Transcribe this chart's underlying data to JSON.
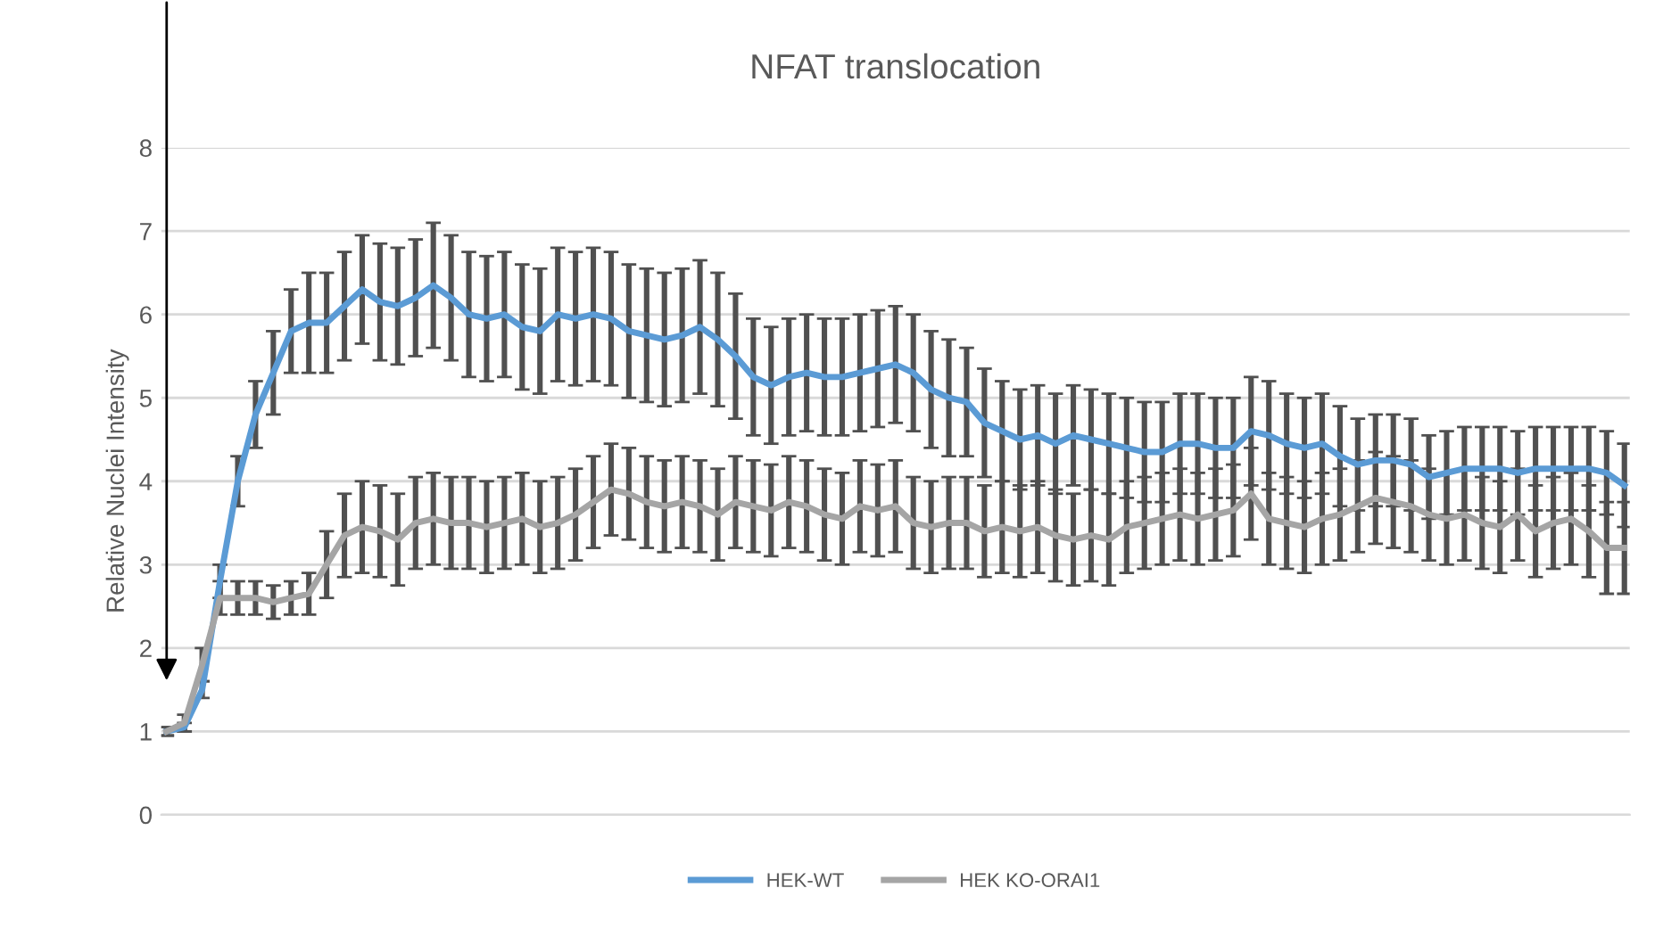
{
  "chart_data": {
    "type": "line",
    "title": "NFAT translocation",
    "ylabel": "Relative Nuclei Intensity",
    "categories": [
      null,
      null,
      null,
      null,
      null,
      null,
      null,
      null,
      null,
      null,
      null,
      null,
      null,
      null,
      null,
      null,
      null,
      null,
      null,
      null,
      null,
      null,
      null,
      null,
      null,
      null,
      null,
      null,
      null,
      null,
      null,
      null,
      null,
      null,
      null,
      null,
      null,
      null,
      null,
      null,
      null,
      null,
      null,
      null,
      null,
      null,
      null,
      null,
      null,
      null,
      null,
      null,
      null,
      null,
      null,
      null,
      null,
      null,
      null,
      null,
      null,
      null,
      null,
      null,
      null,
      null,
      null,
      null,
      null,
      null,
      null,
      null,
      null,
      null,
      null,
      null,
      null,
      null,
      null,
      null,
      null,
      null,
      null
    ],
    "ylim": [
      0,
      8
    ],
    "yticks": [
      0,
      1,
      2,
      3,
      4,
      5,
      6,
      7,
      8
    ],
    "grid": "y",
    "legend": "bottom",
    "marker": "none",
    "line_style": "solid",
    "series": [
      {
        "name": "HEK-WT",
        "color": "#5b9bd5",
        "values": [
          1.0,
          1.05,
          1.5,
          2.8,
          4.0,
          4.8,
          5.3,
          5.8,
          5.9,
          5.9,
          6.1,
          6.3,
          6.15,
          6.1,
          6.2,
          6.35,
          6.2,
          6.0,
          5.95,
          6.0,
          5.85,
          5.8,
          6.0,
          5.95,
          6.0,
          5.95,
          5.8,
          5.75,
          5.7,
          5.75,
          5.85,
          5.7,
          5.5,
          5.25,
          5.15,
          5.25,
          5.3,
          5.25,
          5.25,
          5.3,
          5.35,
          5.4,
          5.3,
          5.1,
          5.0,
          4.95,
          4.7,
          4.6,
          4.5,
          4.55,
          4.45,
          4.55,
          4.5,
          4.45,
          4.4,
          4.35,
          4.35,
          4.45,
          4.45,
          4.4,
          4.4,
          4.6,
          4.55,
          4.45,
          4.4,
          4.45,
          4.3,
          4.2,
          4.25,
          4.25,
          4.2,
          4.05,
          4.1,
          4.15,
          4.15,
          4.15,
          4.1,
          4.15,
          4.15,
          4.15,
          4.15,
          4.1,
          3.95
        ],
        "errors": [
          0.05,
          0.05,
          0.1,
          0.2,
          0.3,
          0.4,
          0.5,
          0.5,
          0.6,
          0.6,
          0.65,
          0.65,
          0.7,
          0.7,
          0.7,
          0.75,
          0.75,
          0.75,
          0.75,
          0.75,
          0.75,
          0.75,
          0.8,
          0.8,
          0.8,
          0.8,
          0.8,
          0.8,
          0.8,
          0.8,
          0.8,
          0.8,
          0.75,
          0.7,
          0.7,
          0.7,
          0.7,
          0.7,
          0.7,
          0.7,
          0.7,
          0.7,
          0.7,
          0.7,
          0.7,
          0.65,
          0.65,
          0.6,
          0.6,
          0.6,
          0.6,
          0.6,
          0.6,
          0.6,
          0.6,
          0.6,
          0.6,
          0.6,
          0.6,
          0.6,
          0.6,
          0.65,
          0.65,
          0.6,
          0.6,
          0.6,
          0.6,
          0.55,
          0.55,
          0.55,
          0.55,
          0.5,
          0.5,
          0.5,
          0.5,
          0.5,
          0.5,
          0.5,
          0.5,
          0.5,
          0.5,
          0.5,
          0.5
        ]
      },
      {
        "name": "HEK KO-ORAI1",
        "color": "#a5a5a5",
        "values": [
          1.0,
          1.1,
          1.8,
          2.6,
          2.6,
          2.6,
          2.55,
          2.6,
          2.65,
          3.0,
          3.35,
          3.45,
          3.4,
          3.3,
          3.5,
          3.55,
          3.5,
          3.5,
          3.45,
          3.5,
          3.55,
          3.45,
          3.5,
          3.6,
          3.75,
          3.9,
          3.85,
          3.75,
          3.7,
          3.75,
          3.7,
          3.6,
          3.75,
          3.7,
          3.65,
          3.75,
          3.7,
          3.6,
          3.55,
          3.7,
          3.65,
          3.7,
          3.5,
          3.45,
          3.5,
          3.5,
          3.4,
          3.45,
          3.4,
          3.45,
          3.35,
          3.3,
          3.35,
          3.3,
          3.45,
          3.5,
          3.55,
          3.6,
          3.55,
          3.6,
          3.65,
          3.85,
          3.55,
          3.5,
          3.45,
          3.55,
          3.6,
          3.7,
          3.8,
          3.75,
          3.7,
          3.6,
          3.55,
          3.6,
          3.5,
          3.45,
          3.6,
          3.4,
          3.5,
          3.55,
          3.4,
          3.2,
          3.2
        ],
        "errors": [
          0.05,
          0.1,
          0.2,
          0.2,
          0.2,
          0.2,
          0.2,
          0.2,
          0.25,
          0.4,
          0.5,
          0.55,
          0.55,
          0.55,
          0.55,
          0.55,
          0.55,
          0.55,
          0.55,
          0.55,
          0.55,
          0.55,
          0.55,
          0.55,
          0.55,
          0.55,
          0.55,
          0.55,
          0.55,
          0.55,
          0.55,
          0.55,
          0.55,
          0.55,
          0.55,
          0.55,
          0.55,
          0.55,
          0.55,
          0.55,
          0.55,
          0.55,
          0.55,
          0.55,
          0.55,
          0.55,
          0.55,
          0.55,
          0.55,
          0.55,
          0.55,
          0.55,
          0.55,
          0.55,
          0.55,
          0.55,
          0.55,
          0.55,
          0.55,
          0.55,
          0.55,
          0.55,
          0.55,
          0.55,
          0.55,
          0.55,
          0.55,
          0.55,
          0.55,
          0.55,
          0.55,
          0.55,
          0.55,
          0.55,
          0.55,
          0.55,
          0.55,
          0.55,
          0.55,
          0.55,
          0.55,
          0.55,
          0.55
        ]
      }
    ]
  }
}
